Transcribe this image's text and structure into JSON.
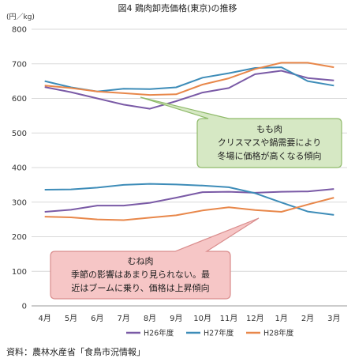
{
  "chart_data": {
    "type": "line",
    "title": "図4 鶏肉卸売価格(東京)の推移",
    "unit_label": "(円／kg)",
    "categories": [
      "4月",
      "5月",
      "6月",
      "7月",
      "8月",
      "9月",
      "10月",
      "11月",
      "12月",
      "1月",
      "2月",
      "3月"
    ],
    "ylim": [
      0,
      800
    ],
    "yticks": [
      0,
      100,
      200,
      300,
      400,
      500,
      600,
      700,
      800
    ],
    "grid": true,
    "legend_position": "bottom",
    "series": [
      {
        "name": "H26年度",
        "color": "#7a5aa6",
        "group": "もも肉",
        "values": [
          633,
          618,
          600,
          582,
          570,
          592,
          617,
          630,
          670,
          680,
          659,
          652
        ]
      },
      {
        "name": "H27年度",
        "color": "#3d8cb8",
        "group": "もも肉",
        "values": [
          650,
          632,
          620,
          628,
          627,
          632,
          660,
          673,
          688,
          690,
          650,
          637
        ]
      },
      {
        "name": "H28年度",
        "color": "#e8874a",
        "group": "もも肉",
        "values": [
          637,
          630,
          620,
          615,
          610,
          612,
          640,
          658,
          685,
          703,
          703,
          690
        ]
      },
      {
        "name": "H26年度",
        "color": "#7a5aa6",
        "group": "むね肉",
        "values": [
          272,
          278,
          290,
          290,
          298,
          313,
          329,
          330,
          327,
          330,
          331,
          338
        ]
      },
      {
        "name": "H27年度",
        "color": "#3d8cb8",
        "group": "むね肉",
        "values": [
          336,
          337,
          342,
          350,
          353,
          351,
          348,
          343,
          326,
          299,
          273,
          263
        ]
      },
      {
        "name": "H28年度",
        "color": "#e8874a",
        "group": "むね肉",
        "values": [
          258,
          256,
          250,
          248,
          255,
          262,
          276,
          285,
          277,
          272,
          293,
          313
        ]
      }
    ],
    "legend": [
      {
        "name": "H26年度",
        "color": "#7a5aa6"
      },
      {
        "name": "H27年度",
        "color": "#3d8cb8"
      },
      {
        "name": "H28年度",
        "color": "#e8874a"
      }
    ],
    "annotations": [
      {
        "id": "momo",
        "lines": [
          "もも肉",
          "クリスマスや鍋需要により",
          "冬場に価格が高くなる傾向"
        ],
        "fill": "#d6e8c4",
        "stroke": "#8fba6a"
      },
      {
        "id": "mune",
        "lines": [
          "むね肉",
          "季節の影響はあまり見られない。最",
          "近はブームに乗り、価格は上昇傾向"
        ],
        "fill": "#f6c6c6",
        "stroke": "#d98c8c"
      }
    ]
  },
  "source": "資料：農林水産省「食鳥市況情報」"
}
